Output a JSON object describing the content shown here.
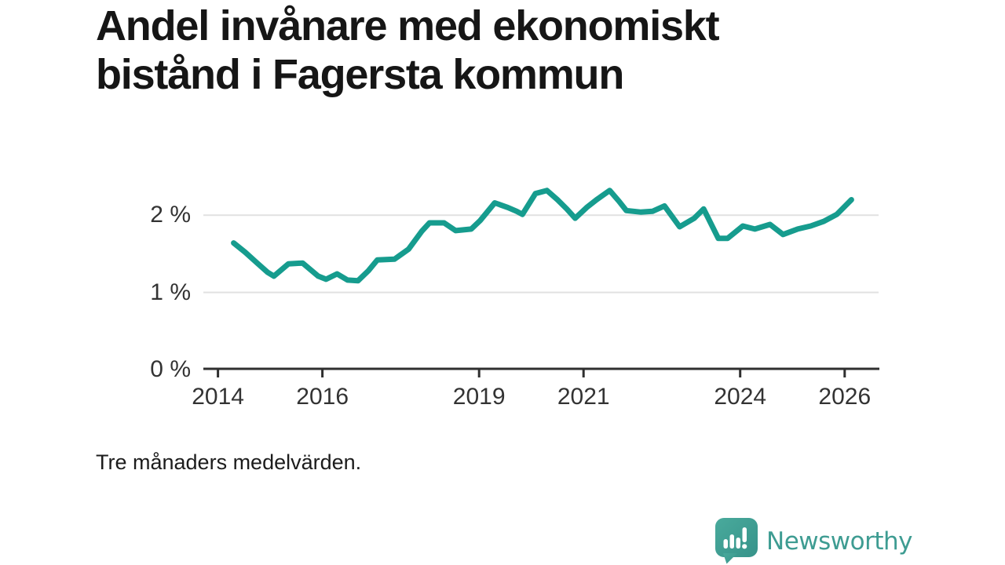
{
  "page": {
    "title_line1": "Andel invånare med ekonomiskt",
    "title_line2": "bistånd i Fagersta kommun",
    "footnote": "Tre månaders medelvärden.",
    "background_color": "#ffffff"
  },
  "logo": {
    "text": "Newsworthy",
    "brand_color": "#3E9C92",
    "icon": "newsworthy-speech-bubble-bar-chart-icon"
  },
  "chart_data": {
    "type": "line",
    "title": "Andel invånare med ekonomiskt bistånd i Fagersta kommun",
    "footnote": "Tre månaders medelvärden.",
    "unit": "%",
    "grid": "horizontal",
    "legend": "none",
    "accent_color": "#169C8E",
    "axis_color": "#2f2f2f",
    "gridline_color": "#e1e1e1",
    "x_axis": {
      "range": [
        2013.72,
        2026.65
      ],
      "ticks": [
        2014,
        2016,
        2019,
        2021,
        2024,
        2026
      ]
    },
    "y_axis": {
      "range": [
        0,
        2.45
      ],
      "ticks": [
        {
          "value": 0,
          "label": "0 %"
        },
        {
          "value": 1,
          "label": "1 %"
        },
        {
          "value": 2,
          "label": "2 %"
        }
      ]
    },
    "series": [
      {
        "name": "Andel invånare med ekonomiskt bistånd",
        "color": "#169C8E",
        "points": [
          [
            2014.3,
            1.64
          ],
          [
            2014.52,
            1.52
          ],
          [
            2014.75,
            1.38
          ],
          [
            2014.95,
            1.26
          ],
          [
            2015.07,
            1.21
          ],
          [
            2015.35,
            1.37
          ],
          [
            2015.62,
            1.38
          ],
          [
            2015.92,
            1.21
          ],
          [
            2016.07,
            1.17
          ],
          [
            2016.28,
            1.24
          ],
          [
            2016.48,
            1.16
          ],
          [
            2016.68,
            1.15
          ],
          [
            2016.88,
            1.28
          ],
          [
            2017.05,
            1.42
          ],
          [
            2017.38,
            1.43
          ],
          [
            2017.65,
            1.56
          ],
          [
            2017.9,
            1.79
          ],
          [
            2018.05,
            1.9
          ],
          [
            2018.33,
            1.9
          ],
          [
            2018.55,
            1.8
          ],
          [
            2018.85,
            1.82
          ],
          [
            2019.02,
            1.93
          ],
          [
            2019.3,
            2.16
          ],
          [
            2019.55,
            2.1
          ],
          [
            2019.72,
            2.05
          ],
          [
            2019.83,
            2.01
          ],
          [
            2020.08,
            2.28
          ],
          [
            2020.3,
            2.32
          ],
          [
            2020.5,
            2.2
          ],
          [
            2020.68,
            2.08
          ],
          [
            2020.84,
            1.96
          ],
          [
            2021.06,
            2.1
          ],
          [
            2021.25,
            2.2
          ],
          [
            2021.5,
            2.32
          ],
          [
            2021.68,
            2.18
          ],
          [
            2021.82,
            2.06
          ],
          [
            2022.1,
            2.04
          ],
          [
            2022.32,
            2.05
          ],
          [
            2022.55,
            2.12
          ],
          [
            2022.84,
            1.85
          ],
          [
            2023.12,
            1.96
          ],
          [
            2023.3,
            2.08
          ],
          [
            2023.58,
            1.7
          ],
          [
            2023.76,
            1.7
          ],
          [
            2024.05,
            1.86
          ],
          [
            2024.28,
            1.82
          ],
          [
            2024.57,
            1.88
          ],
          [
            2024.82,
            1.75
          ],
          [
            2025.1,
            1.82
          ],
          [
            2025.35,
            1.86
          ],
          [
            2025.6,
            1.92
          ],
          [
            2025.85,
            2.01
          ],
          [
            2026.13,
            2.2
          ]
        ]
      }
    ]
  }
}
